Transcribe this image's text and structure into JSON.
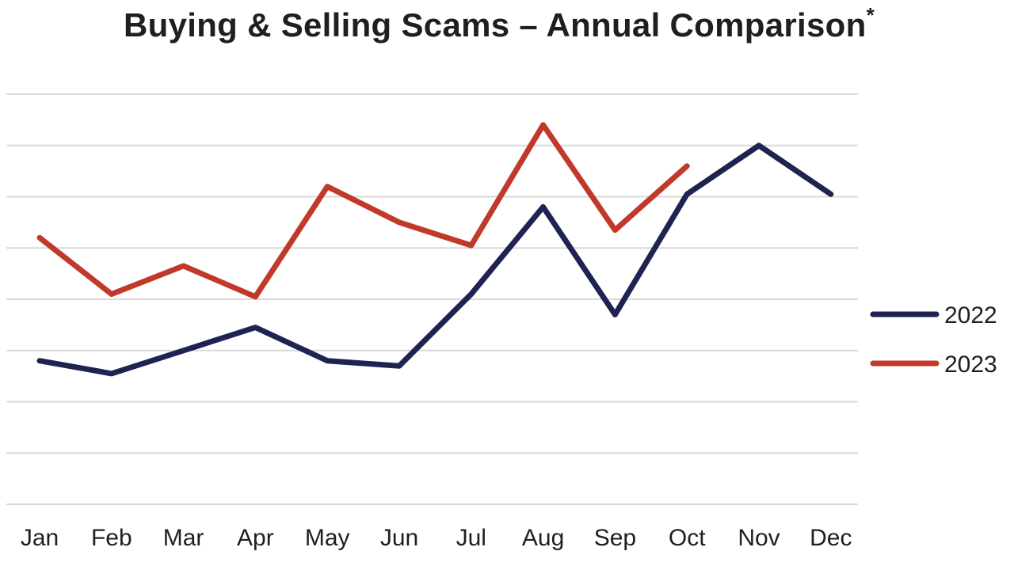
{
  "chart_data": {
    "type": "line",
    "title": "Buying & Selling Scams – Annual Comparison",
    "title_mark": "*",
    "xlabel": "",
    "ylabel": "",
    "categories": [
      "Jan",
      "Feb",
      "Mar",
      "Apr",
      "May",
      "Jun",
      "Jul",
      "Aug",
      "Sep",
      "Oct",
      "Nov",
      "Dec"
    ],
    "ylim": [
      0,
      8
    ],
    "grid": true,
    "legend_position": "right",
    "series": [
      {
        "name": "2022",
        "color": "#1f2351",
        "values": [
          2.8,
          2.55,
          3.0,
          3.45,
          2.8,
          2.7,
          4.1,
          5.8,
          3.7,
          6.05,
          7.0,
          6.05
        ]
      },
      {
        "name": "2023",
        "color": "#c0392b",
        "values": [
          5.2,
          4.1,
          4.65,
          4.05,
          6.2,
          5.5,
          5.05,
          7.4,
          5.35,
          6.6,
          null,
          null
        ]
      }
    ]
  }
}
